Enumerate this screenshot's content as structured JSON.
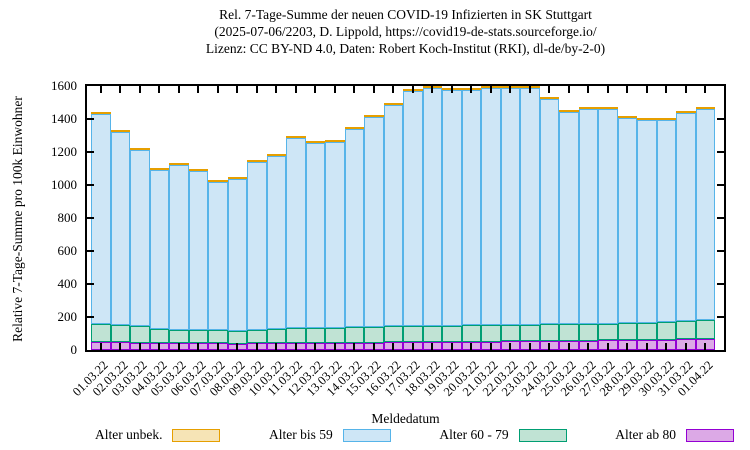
{
  "title": {
    "line1": "Rel. 7-Tage-Summe der neuen COVID-19 Infizierten in SK Stuttgart",
    "line2": "(2025-07-06/2203, D. Lippold, https://covid19-de-stats.sourceforge.io/",
    "line3": "Lizenz: CC BY-ND 4.0, Daten: Robert Koch-Institut (RKI), dl-de/by-2-0)"
  },
  "chart_data": {
    "type": "bar",
    "stacked": true,
    "title": "Rel. 7-Tage-Summe der neuen COVID-19 Infizierten in SK Stuttgart",
    "xlabel": "Meldedatum",
    "ylabel": "Relative 7-Tage-Summe pro 100k Einwohner",
    "ylim": [
      0,
      1600
    ],
    "ytick_step": 200,
    "grid": false,
    "legend_position": "bottom",
    "categories": [
      "01.03.22",
      "02.03.22",
      "03.03.22",
      "04.03.22",
      "05.03.22",
      "06.03.22",
      "07.03.22",
      "08.03.22",
      "09.03.22",
      "10.03.22",
      "11.03.22",
      "12.03.22",
      "13.03.22",
      "14.03.22",
      "15.03.22",
      "16.03.22",
      "17.03.22",
      "18.03.22",
      "19.03.22",
      "20.03.22",
      "21.03.22",
      "22.03.22",
      "23.03.22",
      "24.03.22",
      "25.03.22",
      "26.03.22",
      "27.03.22",
      "28.03.22",
      "29.03.22",
      "30.03.22",
      "31.03.22",
      "01.04.22"
    ],
    "stack_order_bottom_to_top": [
      "Alter ab 80",
      "Alter 60 - 79",
      "Alter bis 59",
      "Alter unbek."
    ],
    "series": [
      {
        "name": "Alter unbek.",
        "border": "#E69F00",
        "fill": "#F6E4B6",
        "values": [
          2,
          2,
          2,
          2,
          2,
          2,
          2,
          2,
          2,
          2,
          2,
          2,
          2,
          2,
          2,
          2,
          2,
          2,
          2,
          2,
          2,
          2,
          10,
          6,
          2,
          2,
          2,
          2,
          2,
          2,
          2,
          2
        ]
      },
      {
        "name": "Alter bis 59",
        "border": "#56B4E9",
        "fill": "#CEE6F6",
        "values": [
          1273,
          1173,
          1070,
          967,
          999,
          966,
          898,
          920,
          1014,
          1045,
          1149,
          1119,
          1127,
          1200,
          1273,
          1344,
          1422,
          1450,
          1425,
          1428,
          1448,
          1451,
          1431,
          1368,
          1287,
          1305,
          1298,
          1246,
          1227,
          1223,
          1263,
          1278
        ]
      },
      {
        "name": "Alter 60 - 79",
        "border": "#009E73",
        "fill": "#C0E3D4",
        "values": [
          112,
          104,
          98,
          84,
          82,
          82,
          80,
          80,
          84,
          86,
          92,
          94,
          94,
          94,
          96,
          98,
          100,
          100,
          100,
          100,
          100,
          100,
          102,
          102,
          102,
          102,
          102,
          104,
          106,
          108,
          110,
          112
        ]
      },
      {
        "name": "Alter ab 80",
        "border": "#9400D3",
        "fill": "#DCA9E6",
        "values": [
          48,
          46,
          45,
          42,
          42,
          40,
          40,
          38,
          40,
          42,
          42,
          40,
          42,
          44,
          44,
          46,
          46,
          48,
          48,
          50,
          50,
          52,
          52,
          54,
          54,
          56,
          58,
          58,
          60,
          62,
          65,
          68
        ]
      }
    ],
    "totals": [
      1435,
      1325,
      1215,
      1095,
      1125,
      1090,
      1020,
      1040,
      1140,
      1175,
      1285,
      1255,
      1265,
      1340,
      1415,
      1490,
      1570,
      1600,
      1575,
      1580,
      1600,
      1605,
      1595,
      1530,
      1445,
      1465,
      1460,
      1410,
      1395,
      1395,
      1440,
      1460
    ]
  }
}
